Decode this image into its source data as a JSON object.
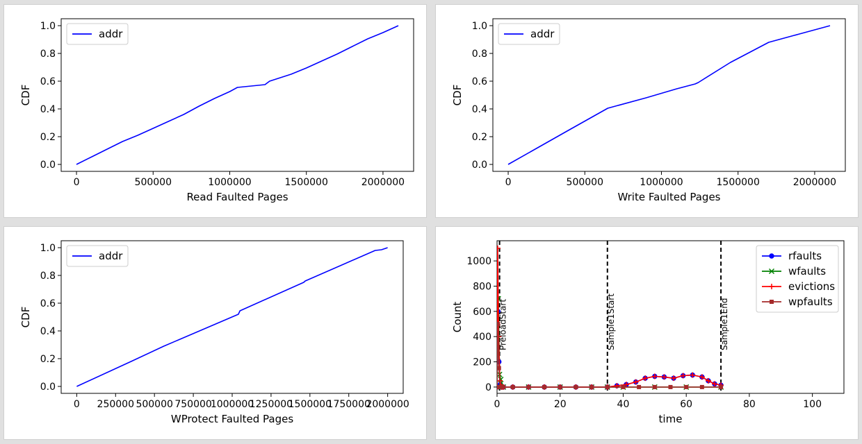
{
  "chart_data": [
    {
      "type": "line",
      "xlabel": "Read Faulted Pages",
      "ylabel": "CDF",
      "xlim": [
        -100000,
        2200000
      ],
      "ylim": [
        -0.05,
        1.05
      ],
      "xticks": [
        0,
        500000,
        1000000,
        1500000,
        2000000
      ],
      "xtick_labels": [
        "0",
        "500000",
        "1000000",
        "1500000",
        "2000000"
      ],
      "yticks": [
        0.0,
        0.2,
        0.4,
        0.6,
        0.8,
        1.0
      ],
      "ytick_labels": [
        "0.0",
        "0.2",
        "0.4",
        "0.6",
        "0.8",
        "1.0"
      ],
      "legend": {
        "position": "upper-left",
        "entries": [
          {
            "name": "addr",
            "color": "#0000ff"
          }
        ]
      },
      "series": [
        {
          "name": "addr",
          "color": "#0000ff",
          "x": [
            0,
            100000,
            200000,
            300000,
            400000,
            500000,
            600000,
            700000,
            800000,
            900000,
            1000000,
            1050000,
            1230000,
            1260000,
            1400000,
            1500000,
            1600000,
            1700000,
            1800000,
            1900000,
            2000000,
            2100000
          ],
          "y": [
            0.0,
            0.055,
            0.11,
            0.165,
            0.21,
            0.26,
            0.31,
            0.36,
            0.42,
            0.475,
            0.525,
            0.555,
            0.575,
            0.6,
            0.65,
            0.695,
            0.745,
            0.795,
            0.85,
            0.905,
            0.95,
            1.0
          ]
        }
      ]
    },
    {
      "type": "line",
      "xlabel": "Write Faulted Pages",
      "ylabel": "CDF",
      "xlim": [
        -100000,
        2200000
      ],
      "ylim": [
        -0.05,
        1.05
      ],
      "xticks": [
        0,
        500000,
        1000000,
        1500000,
        2000000
      ],
      "xtick_labels": [
        "0",
        "500000",
        "1000000",
        "1500000",
        "2000000"
      ],
      "yticks": [
        0.0,
        0.2,
        0.4,
        0.6,
        0.8,
        1.0
      ],
      "ytick_labels": [
        "0.0",
        "0.2",
        "0.4",
        "0.6",
        "0.8",
        "1.0"
      ],
      "legend": {
        "position": "upper-left",
        "entries": [
          {
            "name": "addr",
            "color": "#0000ff"
          }
        ]
      },
      "series": [
        {
          "name": "addr",
          "color": "#0000ff",
          "x": [
            0,
            200000,
            400000,
            650000,
            900000,
            1100000,
            1220000,
            1240000,
            1450000,
            1700000,
            1900000,
            2100000
          ],
          "y": [
            0.0,
            0.125,
            0.25,
            0.405,
            0.48,
            0.545,
            0.58,
            0.59,
            0.735,
            0.88,
            0.94,
            1.0
          ]
        }
      ]
    },
    {
      "type": "line",
      "xlabel": "WProtect Faulted Pages",
      "ylabel": "CDF",
      "xlim": [
        -100000,
        2100000
      ],
      "ylim": [
        -0.05,
        1.05
      ],
      "xticks": [
        0,
        250000,
        500000,
        750000,
        1000000,
        1250000,
        1500000,
        1750000,
        2000000
      ],
      "xtick_labels": [
        "0",
        "250000",
        "500000",
        "750000",
        "1000000",
        "1250000",
        "1500000",
        "1750000",
        "2000000"
      ],
      "yticks": [
        0.0,
        0.2,
        0.4,
        0.6,
        0.8,
        1.0
      ],
      "ytick_labels": [
        "0.0",
        "0.2",
        "0.4",
        "0.6",
        "0.8",
        "1.0"
      ],
      "legend": {
        "position": "upper-left",
        "entries": [
          {
            "name": "addr",
            "color": "#0000ff"
          }
        ]
      },
      "series": [
        {
          "name": "addr",
          "color": "#0000ff",
          "x": [
            0,
            350000,
            560000,
            1040000,
            1050000,
            1460000,
            1470000,
            1920000,
            1960000,
            2000000
          ],
          "y": [
            0.0,
            0.18,
            0.29,
            0.52,
            0.545,
            0.75,
            0.76,
            0.98,
            0.985,
            1.0
          ]
        }
      ]
    },
    {
      "type": "line",
      "xlabel": "time",
      "ylabel": "Count",
      "xlim": [
        0,
        110
      ],
      "ylim": [
        -50,
        1160
      ],
      "xticks": [
        0,
        20,
        40,
        60,
        80,
        100
      ],
      "xtick_labels": [
        "0",
        "20",
        "40",
        "60",
        "80",
        "100"
      ],
      "yticks": [
        0,
        200,
        400,
        600,
        800,
        1000
      ],
      "ytick_labels": [
        "0",
        "200",
        "400",
        "600",
        "800",
        "1000"
      ],
      "legend": {
        "position": "upper-right",
        "entries": [
          {
            "name": "rfaults",
            "color": "#0000ff",
            "marker": "circle"
          },
          {
            "name": "wfaults",
            "color": "#008000",
            "marker": "x"
          },
          {
            "name": "evictions",
            "color": "#ff0000",
            "marker": "plus"
          },
          {
            "name": "wpfaults",
            "color": "#a52a2a",
            "marker": "square"
          }
        ]
      },
      "vlines": [
        {
          "x": 0.8,
          "label": "PreloadStart"
        },
        {
          "x": 35,
          "label": "Sample1Start"
        },
        {
          "x": 71,
          "label": "Sample1End"
        }
      ],
      "series": [
        {
          "name": "rfaults",
          "color": "#0000ff",
          "marker": "circle",
          "x": [
            0,
            0.3,
            0.6,
            1,
            1.5,
            2,
            5,
            10,
            15,
            20,
            25,
            30,
            35,
            38,
            41,
            44,
            47,
            50,
            53,
            56,
            59,
            62,
            65,
            67,
            69,
            71
          ],
          "y": [
            0,
            600,
            200,
            20,
            0,
            0,
            0,
            0,
            0,
            0,
            0,
            0,
            0,
            10,
            20,
            40,
            70,
            85,
            80,
            70,
            90,
            95,
            80,
            50,
            25,
            15
          ]
        },
        {
          "name": "wfaults",
          "color": "#008000",
          "marker": "x",
          "x": [
            0,
            0.4,
            0.8,
            1.2,
            2,
            10,
            20,
            30,
            35,
            40,
            50,
            60,
            71
          ],
          "y": [
            0,
            700,
            100,
            60,
            0,
            0,
            0,
            0,
            0,
            0,
            0,
            0,
            0
          ]
        },
        {
          "name": "evictions",
          "color": "#ff0000",
          "marker": "plus",
          "x": [
            0,
            0.2,
            0.5,
            0.9,
            1.5,
            2,
            5,
            10,
            15,
            20,
            25,
            30,
            35,
            38,
            41,
            44,
            47,
            50,
            53,
            56,
            59,
            62,
            65,
            67,
            69,
            71
          ],
          "y": [
            0,
            1100,
            400,
            50,
            0,
            0,
            0,
            0,
            0,
            0,
            0,
            0,
            0,
            10,
            20,
            40,
            70,
            85,
            80,
            70,
            90,
            95,
            80,
            50,
            25,
            15
          ]
        },
        {
          "name": "wpfaults",
          "color": "#a52a2a",
          "marker": "square",
          "x": [
            0,
            0.3,
            0.6,
            1,
            2,
            5,
            10,
            15,
            20,
            25,
            30,
            35,
            40,
            45,
            50,
            55,
            60,
            65,
            71
          ],
          "y": [
            0,
            500,
            150,
            0,
            0,
            0,
            0,
            0,
            0,
            0,
            0,
            0,
            0,
            0,
            0,
            0,
            0,
            0,
            0
          ]
        }
      ]
    }
  ]
}
